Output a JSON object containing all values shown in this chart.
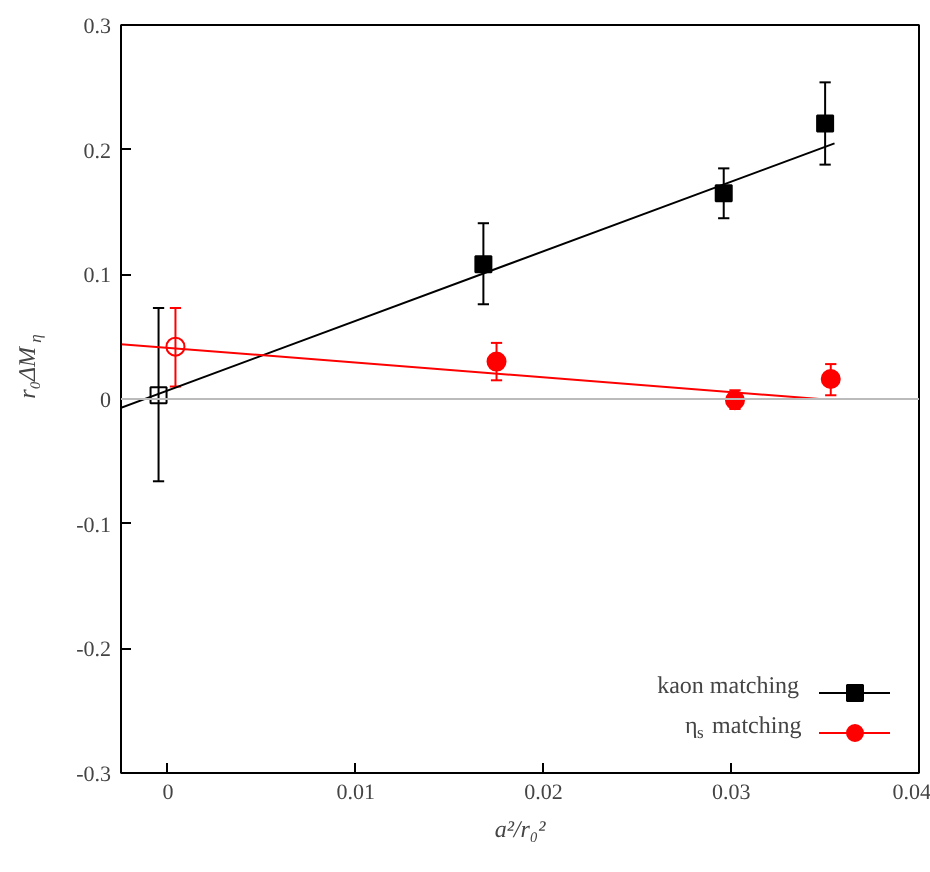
{
  "chart_data": {
    "type": "scatter",
    "xlabel": "a²/r₀²",
    "ylabel": "r₀ΔM$_{η}$",
    "xlim": [
      -0.0025,
      0.04
    ],
    "ylim": [
      -0.3,
      0.3
    ],
    "xticks": [
      0,
      0.01,
      0.02,
      0.03,
      0.04
    ],
    "yticks": [
      -0.3,
      -0.2,
      -0.1,
      0,
      0.1,
      0.2,
      0.3
    ],
    "grid": false,
    "legend": "bottom right",
    "ref_lines": [
      {
        "axis": "y",
        "value": 0,
        "color": "#bbbbbb"
      }
    ],
    "series": [
      {
        "name": "kaon matching",
        "color": "#000000",
        "marker": "square",
        "x": [
          0.0168,
          0.0296,
          0.035
        ],
        "values": [
          0.108,
          0.165,
          0.221
        ],
        "errors": [
          [
            0.076,
            0.141
          ],
          [
            0.145,
            0.185
          ],
          [
            0.188,
            0.254
          ]
        ]
      },
      {
        "name": "η$_{s}$ matching",
        "color": "#ff0000",
        "marker": "circle",
        "x": [
          0.0175,
          0.0302,
          0.0353
        ],
        "values": [
          0.03,
          -0.001,
          0.016
        ],
        "errors": [
          [
            0.015,
            0.045
          ],
          [
            -0.008,
            0.007
          ],
          [
            0.003,
            0.028
          ]
        ]
      },
      {
        "color": "#000000",
        "marker": "square",
        "x": [
          -0.0005
        ],
        "values": [
          0.003
        ],
        "errors": [
          [
            -0.066,
            0.073
          ]
        ]
      },
      {
        "color": "#ff0000",
        "marker": "circle",
        "x": [
          0.0004
        ],
        "values": [
          0.042
        ],
        "errors": [
          [
            0.01,
            0.073
          ]
        ]
      },
      {
        "type": "line",
        "color": "#000000",
        "x": [
          -0.0025,
          0.0355
        ],
        "values": [
          -0.007,
          0.205
        ]
      },
      {
        "type": "line",
        "color": "#ff0000",
        "x": [
          -0.0025,
          0.0347
        ],
        "values": [
          0.044,
          0.0
        ]
      }
    ]
  }
}
